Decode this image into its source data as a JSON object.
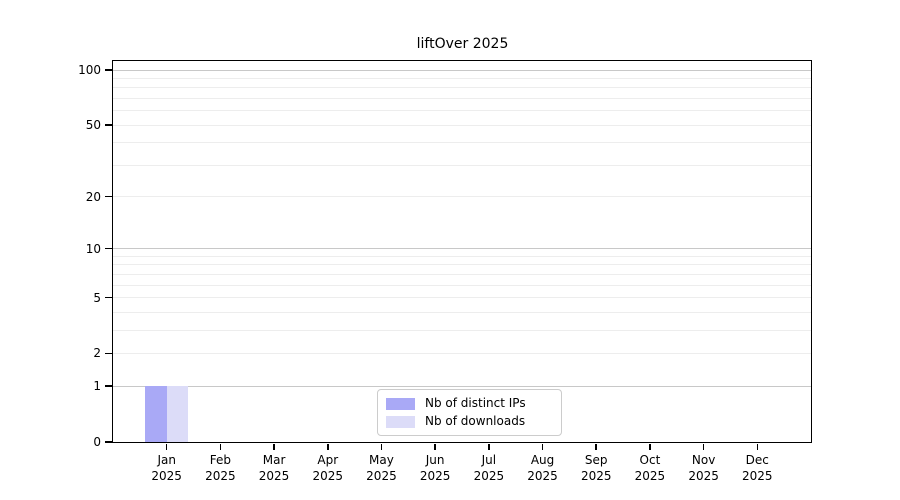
{
  "chart_data": {
    "type": "bar",
    "title": "liftOver 2025",
    "year_label": "2025",
    "categories": [
      "Jan 2025",
      "Feb 2025",
      "Mar 2025",
      "Apr 2025",
      "May 2025",
      "Jun 2025",
      "Jul 2025",
      "Aug 2025",
      "Sep 2025",
      "Oct 2025",
      "Nov 2025",
      "Dec 2025"
    ],
    "months": [
      "Jan",
      "Feb",
      "Mar",
      "Apr",
      "May",
      "Jun",
      "Jul",
      "Aug",
      "Sep",
      "Oct",
      "Nov",
      "Dec"
    ],
    "series": [
      {
        "name": "Nb of distinct IPs",
        "color": "#a9a9f6",
        "values": [
          1,
          0,
          0,
          0,
          0,
          0,
          0,
          0,
          0,
          0,
          0,
          0
        ]
      },
      {
        "name": "Nb of downloads",
        "color": "#dcdcf8",
        "values": [
          1,
          0,
          0,
          0,
          0,
          0,
          0,
          0,
          0,
          0,
          0,
          0
        ]
      }
    ],
    "xlabel": "",
    "ylabel": "",
    "y_axis": {
      "scale": "log1p",
      "ylim": [
        0,
        112
      ],
      "tick_values": [
        0,
        1,
        2,
        5,
        10,
        20,
        50,
        100
      ],
      "major_grid_values": [
        1,
        10,
        100
      ],
      "minor_grid_values": [
        2,
        3,
        4,
        5,
        6,
        7,
        8,
        9,
        20,
        30,
        40,
        50,
        60,
        70,
        80,
        90
      ],
      "major_grid_color": "#c8c8c8",
      "minor_grid_color": "#ededed"
    },
    "legend": {
      "position": "inside-bottom-center",
      "border_color": "#cccccc"
    },
    "grid": "on"
  }
}
